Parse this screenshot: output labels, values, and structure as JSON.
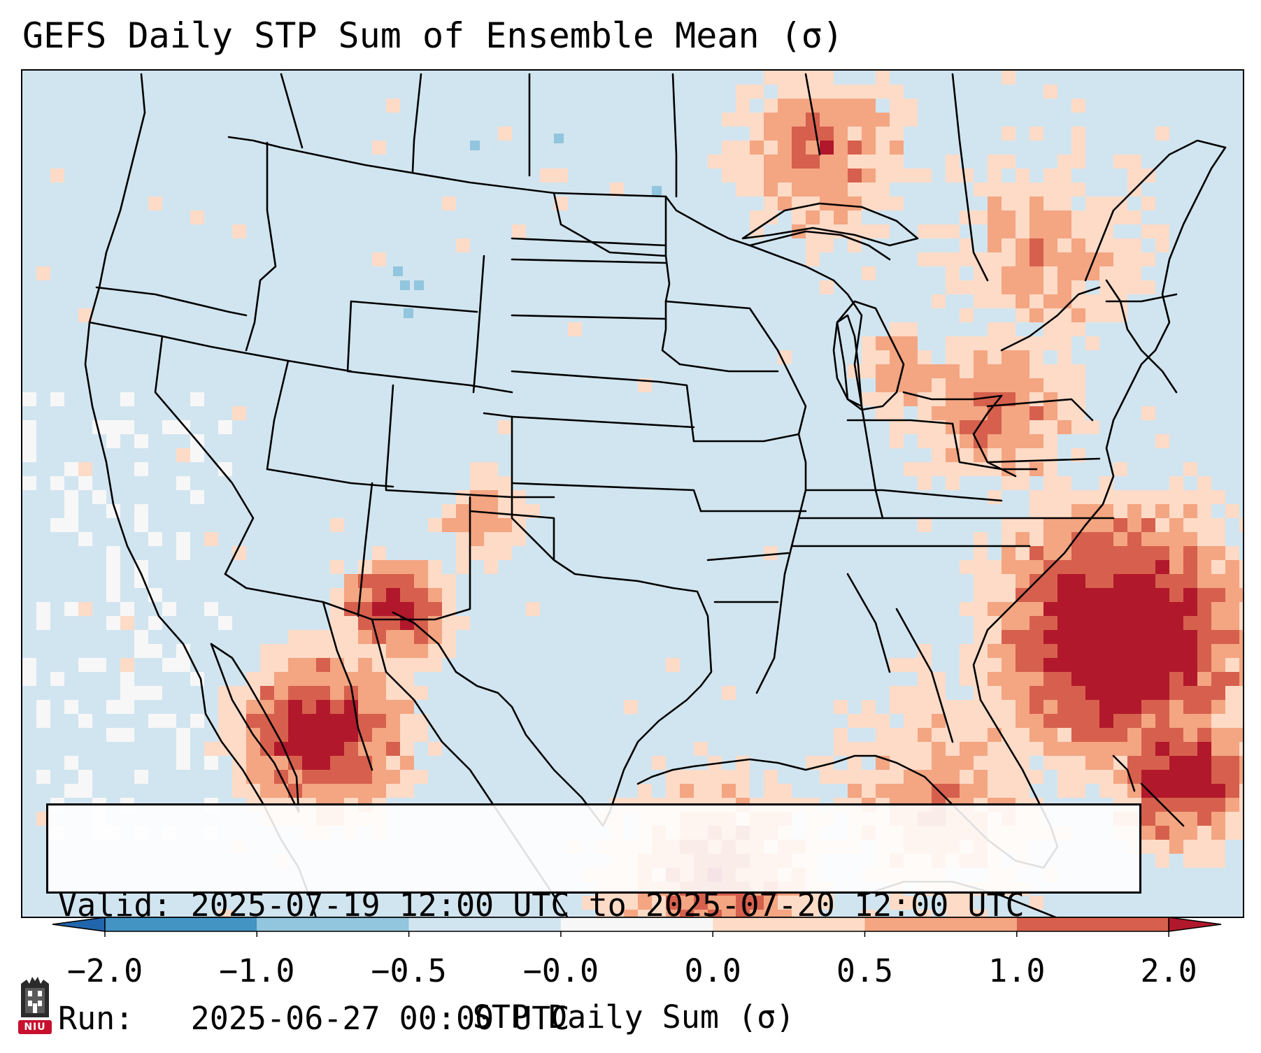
{
  "title": "GEFS Daily STP Sum of Ensemble Mean (σ)",
  "info": {
    "valid_line": "Valid: 2025-07-19 12:00 UTC to 2025-07-20 12:00 UTC",
    "run_line": "Run:   2025-06-27 00:00 UTC"
  },
  "colorbar": {
    "label": "STP Daily Sum (σ)",
    "ticks": [
      "−2.0",
      "−1.0",
      "−0.5",
      "−0.0",
      "0.0",
      "0.5",
      "1.0",
      "2.0"
    ],
    "bins": [
      {
        "from": "-2.0",
        "to": "-1.0",
        "color": "#4393c3"
      },
      {
        "from": "-1.0",
        "to": "-0.5",
        "color": "#92c5de"
      },
      {
        "from": "-0.5",
        "to": "-0.0",
        "color": "#d1e5f0"
      },
      {
        "from": "-0.0",
        "to": "0.0",
        "color": "#f7f7f7"
      },
      {
        "from": "0.0",
        "to": "0.5",
        "color": "#fddbc7"
      },
      {
        "from": "0.5",
        "to": "1.0",
        "color": "#f4a582"
      },
      {
        "from": "1.0",
        "to": "2.0",
        "color": "#d6604d"
      }
    ],
    "under_color": "#2166ac",
    "over_color": "#b2182b"
  },
  "colors": {
    "background_field": "#d1e5f0",
    "near_zero": "#f7f7f7",
    "light_positive": "#fddbc7",
    "moderate_positive": "#f4a582",
    "high_positive": "#d6604d",
    "extreme_positive": "#b2182b",
    "light_negative": "#92c5de"
  },
  "logo": {
    "text": "NIU"
  }
}
